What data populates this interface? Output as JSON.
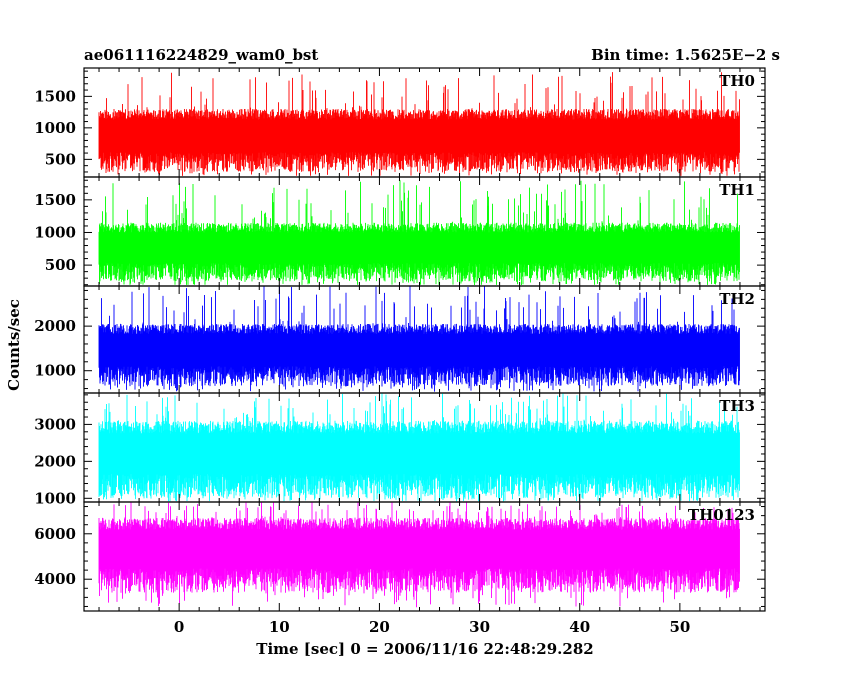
{
  "chart_data": {
    "type": "line",
    "title": "ae061116224829_wam0_bst",
    "bin_time_label": "Bin time: 1.5625E−2 s",
    "xlabel": "Time [sec] 0 = 2006/11/16 22:48:29.282",
    "ylabel": "Counts/sec",
    "xlim": [
      -9.5,
      58.5
    ],
    "x_ticks": [
      0,
      10,
      20,
      30,
      40,
      50
    ],
    "data_x_range": [
      -8,
      56
    ],
    "panels": [
      {
        "name": "TH0",
        "color": "#ff0000",
        "ylim": [
          220,
          1950
        ],
        "y_ticks": [
          500,
          1000,
          1500
        ],
        "band": {
          "low": 300,
          "high": 1300,
          "spike_max": 1900,
          "mean": 820
        }
      },
      {
        "name": "TH1",
        "color": "#00ff00",
        "ylim": [
          180,
          1850
        ],
        "y_ticks": [
          500,
          1000,
          1500
        ],
        "band": {
          "low": 250,
          "high": 1150,
          "spike_max": 1800,
          "mean": 720
        }
      },
      {
        "name": "TH2",
        "color": "#0000ff",
        "ylim": [
          500,
          2900
        ],
        "y_ticks": [
          1000,
          2000
        ],
        "band": {
          "low": 650,
          "high": 2050,
          "spike_max": 2900,
          "mean": 1400
        }
      },
      {
        "name": "TH3",
        "color": "#00ffff",
        "ylim": [
          900,
          3850
        ],
        "y_ticks": [
          1000,
          2000,
          3000
        ],
        "band": {
          "low": 1000,
          "high": 3100,
          "spike_max": 3850,
          "mean": 2100
        }
      },
      {
        "name": "TH0123",
        "color": "#ff00ff",
        "ylim": [
          2600,
          7400
        ],
        "y_ticks": [
          4000,
          6000
        ],
        "band": {
          "low": 3400,
          "high": 6700,
          "spike_max": 7400,
          "mean": 5200
        }
      }
    ]
  }
}
